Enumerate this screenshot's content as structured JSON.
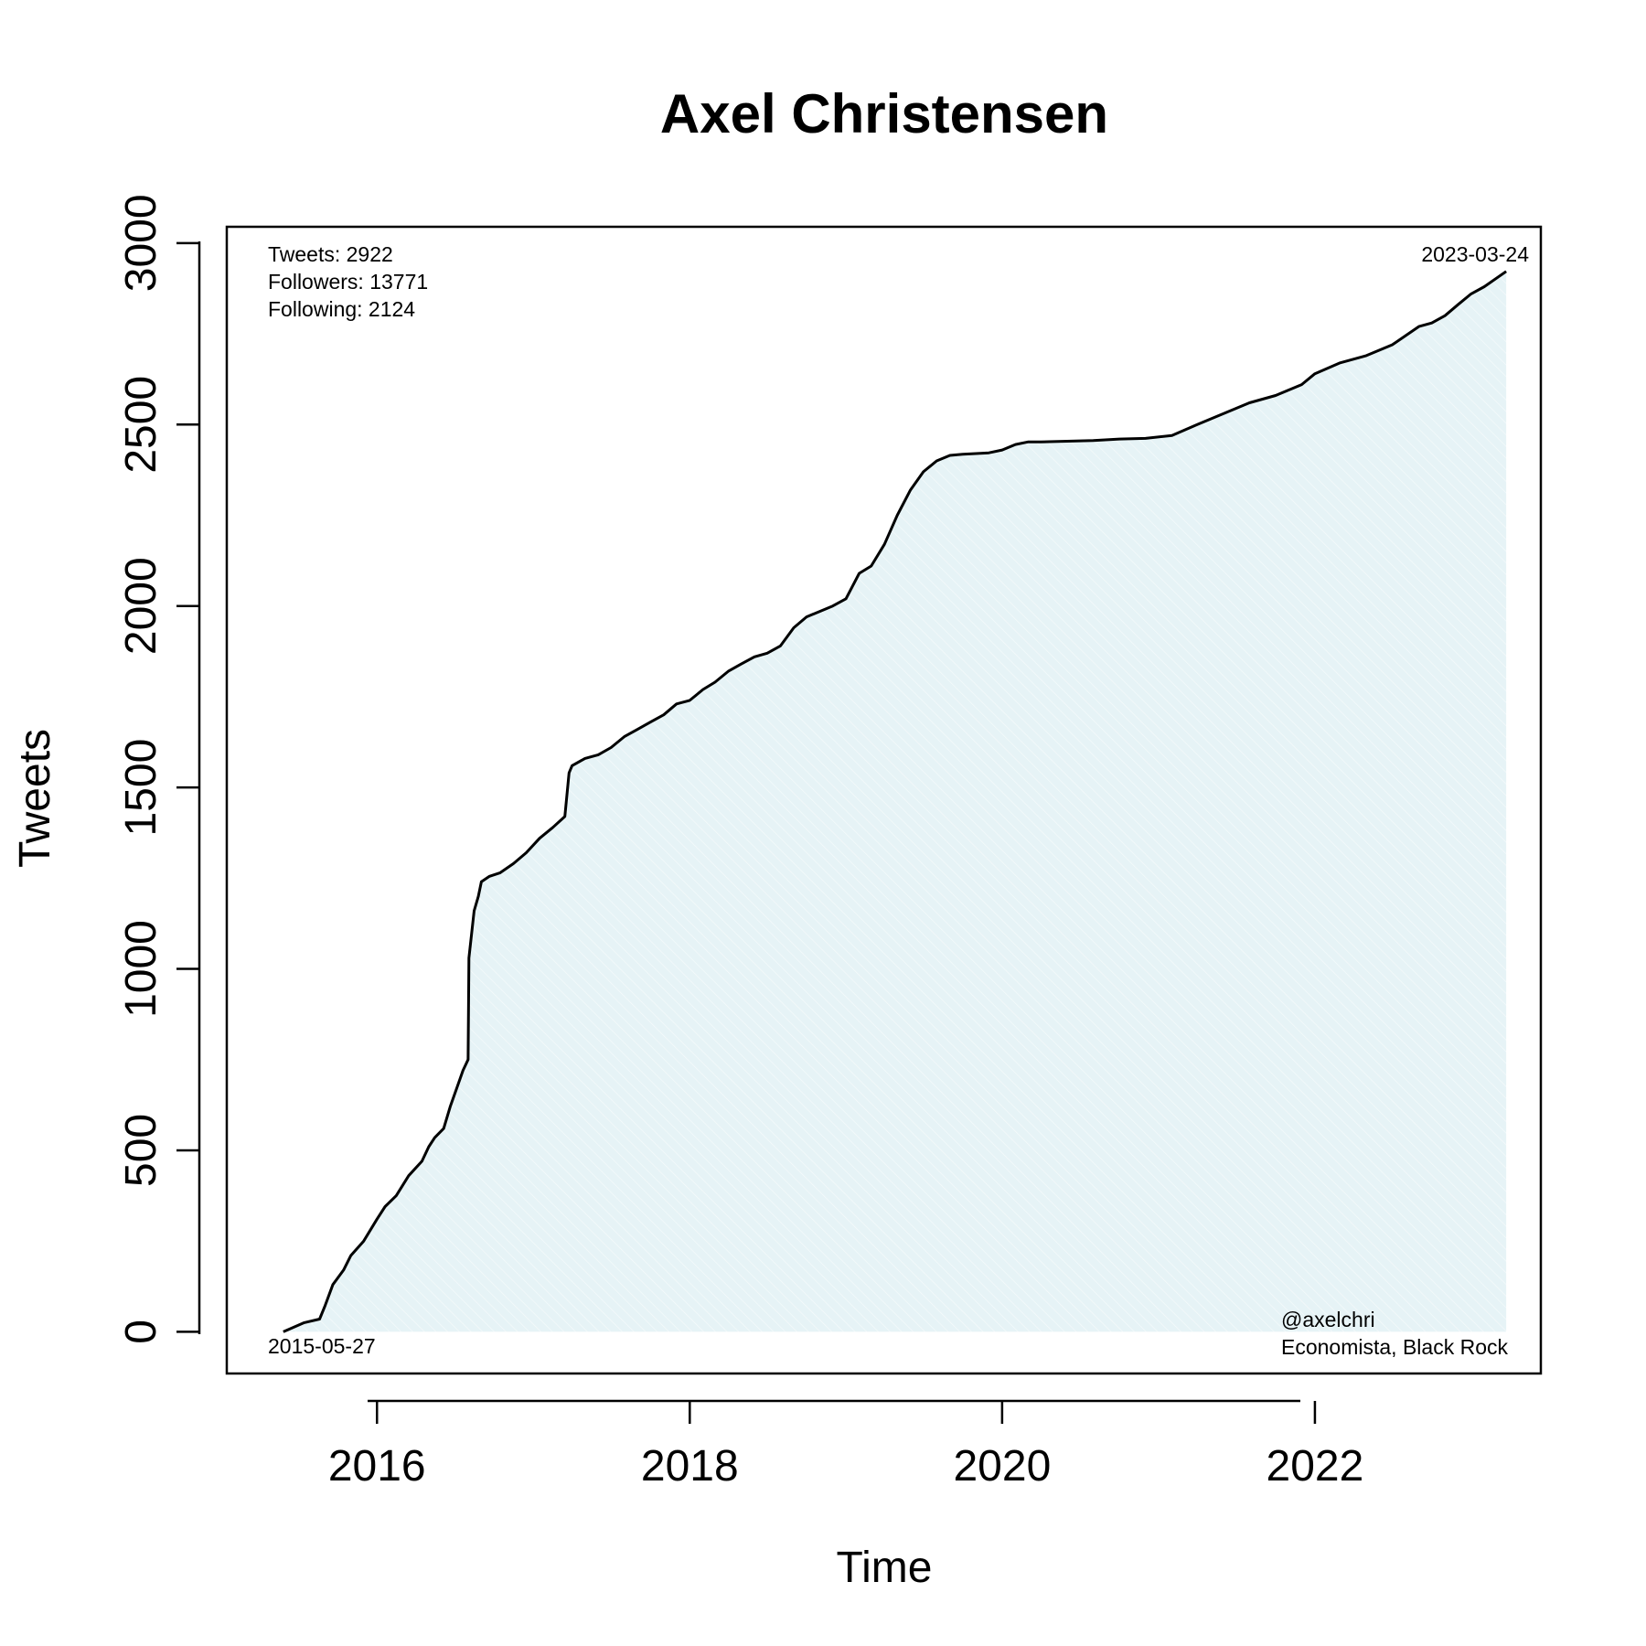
{
  "chart_data": {
    "type": "area",
    "title": "Axel Christensen",
    "xlabel": "Time",
    "ylabel": "Tweets",
    "x_tick_labels": [
      "2016",
      "2018",
      "2020",
      "2022"
    ],
    "y_tick_labels": [
      "0",
      "500",
      "1000",
      "1500",
      "2000",
      "2500",
      "3000"
    ],
    "xlim": [
      "2015-01-15",
      "2023-06-13"
    ],
    "ylim": [
      -115,
      3045
    ],
    "grid": false,
    "fill_color": "#e6f3f6",
    "line_color": "#000000",
    "stats": {
      "tweets": "Tweets: 2922",
      "followers": "Followers: 13771",
      "following": "Following: 2124"
    },
    "start_date_label": "2015-05-27",
    "end_date_label": "2023-03-24",
    "handle": "@axelchri",
    "bio": "Economista, Black Rock",
    "series": [
      {
        "x": [
          "2015-05-27",
          "2015-07-15",
          "2015-08-20",
          "2015-09-01",
          "2015-09-20",
          "2015-10-15",
          "2015-11-01",
          "2015-12-01",
          "2016-01-01",
          "2016-01-20",
          "2016-02-15",
          "2016-03-15",
          "2016-04-15",
          "2016-05-01",
          "2016-05-15",
          "2016-06-05",
          "2016-06-20",
          "2016-07-05",
          "2016-07-20",
          "2016-08-01",
          "2016-08-03",
          "2016-08-15",
          "2016-08-25",
          "2016-09-01",
          "2016-09-20",
          "2016-10-15",
          "2016-11-15",
          "2016-12-15",
          "2017-01-15",
          "2017-02-15",
          "2017-03-15",
          "2017-03-25",
          "2017-04-01",
          "2017-05-01",
          "2017-06-01",
          "2017-07-01",
          "2017-08-01",
          "2017-09-01",
          "2017-10-01",
          "2017-11-01",
          "2017-12-01",
          "2018-01-01",
          "2018-02-01",
          "2018-03-01",
          "2018-04-01",
          "2018-05-01",
          "2018-06-01",
          "2018-07-01",
          "2018-08-01",
          "2018-09-01",
          "2018-10-01",
          "2018-11-01",
          "2018-12-01",
          "2019-01-01",
          "2019-02-01",
          "2019-03-01",
          "2019-04-01",
          "2019-05-01",
          "2019-06-01",
          "2019-07-01",
          "2019-08-01",
          "2019-09-01",
          "2019-10-01",
          "2019-11-01",
          "2019-12-01",
          "2020-01-01",
          "2020-02-01",
          "2020-03-01",
          "2020-04-01",
          "2020-06-01",
          "2020-08-01",
          "2020-10-01",
          "2020-12-01",
          "2021-02-01",
          "2021-04-01",
          "2021-06-01",
          "2021-08-01",
          "2021-10-01",
          "2021-12-01",
          "2022-01-01",
          "2022-03-01",
          "2022-05-01",
          "2022-07-01",
          "2022-09-01",
          "2022-10-01",
          "2022-11-01",
          "2022-12-01",
          "2023-01-01",
          "2023-02-01",
          "2023-03-24"
        ],
        "y": [
          0,
          25,
          35,
          70,
          130,
          170,
          210,
          250,
          310,
          345,
          375,
          430,
          470,
          510,
          535,
          560,
          620,
          670,
          720,
          750,
          1030,
          1160,
          1200,
          1240,
          1255,
          1265,
          1290,
          1320,
          1360,
          1390,
          1420,
          1540,
          1560,
          1580,
          1590,
          1610,
          1640,
          1660,
          1680,
          1700,
          1730,
          1740,
          1770,
          1790,
          1820,
          1840,
          1860,
          1870,
          1890,
          1940,
          1970,
          1985,
          2000,
          2020,
          2090,
          2110,
          2170,
          2250,
          2320,
          2370,
          2400,
          2415,
          2418,
          2420,
          2422,
          2430,
          2445,
          2452,
          2452,
          2454,
          2456,
          2460,
          2462,
          2470,
          2500,
          2530,
          2560,
          2580,
          2610,
          2640,
          2670,
          2690,
          2720,
          2770,
          2780,
          2800,
          2830,
          2860,
          2880,
          2922
        ]
      }
    ]
  }
}
